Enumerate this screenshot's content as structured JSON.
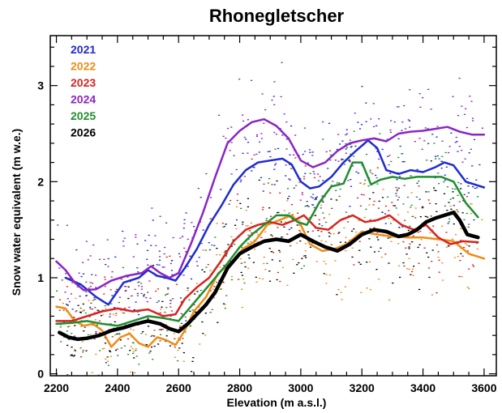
{
  "chart_data": {
    "type": "line",
    "title": "Rhonegletscher",
    "xlabel": "Elevation (m a.s.l.)",
    "ylabel": "Snow water equivalent (m w.e.)",
    "xlim": [
      2180,
      3640
    ],
    "ylim": [
      -0.02,
      3.52
    ],
    "xticks": [
      2200,
      2400,
      2600,
      2800,
      3000,
      3200,
      3400,
      3600
    ],
    "yticks": [
      0,
      1,
      2,
      3
    ],
    "legend_position": "top-left",
    "scatter_points_per_series": 220,
    "series": [
      {
        "name": "2021",
        "color": "#1f2bd1",
        "width": 2.5,
        "x": [
          2230,
          2280,
          2330,
          2370,
          2420,
          2470,
          2500,
          2530,
          2560,
          2590,
          2620,
          2660,
          2700,
          2740,
          2780,
          2820,
          2860,
          2900,
          2940,
          2970,
          3000,
          3030,
          3060,
          3100,
          3140,
          3180,
          3220,
          3250,
          3280,
          3320,
          3360,
          3400,
          3440,
          3470,
          3500,
          3540,
          3600
        ],
        "y": [
          1.0,
          0.93,
          0.8,
          0.72,
          0.95,
          1.0,
          1.08,
          1.02,
          1.0,
          0.97,
          1.1,
          1.3,
          1.55,
          1.75,
          1.97,
          2.12,
          2.2,
          2.22,
          2.24,
          2.18,
          2.0,
          1.93,
          1.95,
          2.05,
          2.2,
          2.32,
          2.43,
          2.35,
          2.12,
          2.08,
          2.12,
          2.1,
          2.15,
          2.2,
          2.17,
          2.0,
          1.94
        ]
      },
      {
        "name": "2022",
        "color": "#ef8c16",
        "width": 2.5,
        "x": [
          2200,
          2230,
          2260,
          2290,
          2320,
          2350,
          2380,
          2410,
          2440,
          2470,
          2500,
          2530,
          2560,
          2590,
          2620,
          2650,
          2690,
          2730,
          2770,
          2810,
          2850,
          2890,
          2930,
          2970,
          3000,
          3030,
          3070,
          3110,
          3150,
          3200,
          3250,
          3300,
          3350,
          3400,
          3450,
          3500,
          3550,
          3600
        ],
        "y": [
          0.7,
          0.68,
          0.55,
          0.5,
          0.52,
          0.45,
          0.28,
          0.38,
          0.42,
          0.32,
          0.28,
          0.38,
          0.35,
          0.3,
          0.45,
          0.65,
          0.8,
          1.05,
          1.15,
          1.3,
          1.38,
          1.55,
          1.6,
          1.65,
          1.55,
          1.35,
          1.28,
          1.3,
          1.35,
          1.48,
          1.45,
          1.43,
          1.42,
          1.42,
          1.4,
          1.38,
          1.25,
          1.2
        ]
      },
      {
        "name": "2023",
        "color": "#d8231f",
        "width": 2.5,
        "x": [
          2200,
          2250,
          2300,
          2350,
          2400,
          2450,
          2500,
          2550,
          2590,
          2620,
          2660,
          2700,
          2740,
          2780,
          2820,
          2860,
          2900,
          2940,
          2980,
          3010,
          3050,
          3090,
          3130,
          3170,
          3210,
          3250,
          3290,
          3330,
          3370,
          3410,
          3450,
          3490,
          3530,
          3580
        ],
        "y": [
          0.55,
          0.55,
          0.6,
          0.65,
          0.68,
          0.65,
          0.67,
          0.6,
          0.62,
          0.78,
          0.9,
          1.0,
          1.18,
          1.38,
          1.5,
          1.55,
          1.58,
          1.55,
          1.6,
          1.65,
          1.52,
          1.5,
          1.6,
          1.65,
          1.58,
          1.6,
          1.65,
          1.55,
          1.5,
          1.55,
          1.42,
          1.35,
          1.38,
          1.37
        ]
      },
      {
        "name": "2024",
        "color": "#8a25c5",
        "width": 2.5,
        "x": [
          2200,
          2230,
          2260,
          2290,
          2330,
          2380,
          2430,
          2480,
          2510,
          2540,
          2570,
          2600,
          2640,
          2680,
          2720,
          2760,
          2800,
          2840,
          2880,
          2920,
          2960,
          3000,
          3040,
          3080,
          3120,
          3160,
          3200,
          3240,
          3280,
          3320,
          3360,
          3400,
          3440,
          3480,
          3520,
          3560,
          3600
        ],
        "y": [
          1.17,
          1.08,
          0.95,
          0.87,
          0.88,
          0.97,
          1.02,
          1.05,
          1.12,
          1.05,
          1.0,
          1.05,
          1.35,
          1.68,
          2.05,
          2.4,
          2.53,
          2.62,
          2.65,
          2.58,
          2.45,
          2.22,
          2.15,
          2.2,
          2.32,
          2.4,
          2.43,
          2.45,
          2.42,
          2.5,
          2.52,
          2.53,
          2.55,
          2.57,
          2.52,
          2.49,
          2.49
        ]
      },
      {
        "name": "2025",
        "color": "#1f8e2f",
        "width": 2.5,
        "x": [
          2200,
          2250,
          2300,
          2350,
          2400,
          2450,
          2500,
          2550,
          2600,
          2640,
          2680,
          2720,
          2760,
          2800,
          2840,
          2880,
          2920,
          2960,
          2990,
          3020,
          3060,
          3100,
          3140,
          3170,
          3200,
          3230,
          3260,
          3300,
          3340,
          3380,
          3420,
          3460,
          3500,
          3540,
          3580
        ],
        "y": [
          0.52,
          0.53,
          0.55,
          0.52,
          0.5,
          0.55,
          0.6,
          0.58,
          0.55,
          0.7,
          0.85,
          1.0,
          1.15,
          1.32,
          1.45,
          1.55,
          1.65,
          1.65,
          1.58,
          1.55,
          1.78,
          1.95,
          1.98,
          2.2,
          2.2,
          1.97,
          2.02,
          2.05,
          2.03,
          2.05,
          2.05,
          2.05,
          2.0,
          1.78,
          1.63
        ]
      },
      {
        "name": "2026",
        "color": "#000000",
        "width": 4.5,
        "x": [
          2210,
          2240,
          2270,
          2300,
          2340,
          2380,
          2420,
          2460,
          2500,
          2540,
          2570,
          2600,
          2630,
          2660,
          2690,
          2720,
          2760,
          2800,
          2840,
          2880,
          2920,
          2960,
          3000,
          3040,
          3080,
          3120,
          3160,
          3200,
          3240,
          3280,
          3320,
          3350,
          3380,
          3410,
          3440,
          3470,
          3500,
          3520,
          3545,
          3580
        ],
        "y": [
          0.43,
          0.38,
          0.36,
          0.37,
          0.4,
          0.45,
          0.48,
          0.52,
          0.55,
          0.52,
          0.47,
          0.44,
          0.52,
          0.62,
          0.72,
          0.85,
          1.1,
          1.25,
          1.32,
          1.38,
          1.4,
          1.38,
          1.45,
          1.38,
          1.32,
          1.28,
          1.35,
          1.45,
          1.5,
          1.48,
          1.43,
          1.45,
          1.5,
          1.58,
          1.62,
          1.65,
          1.68,
          1.6,
          1.45,
          1.42
        ]
      }
    ]
  }
}
